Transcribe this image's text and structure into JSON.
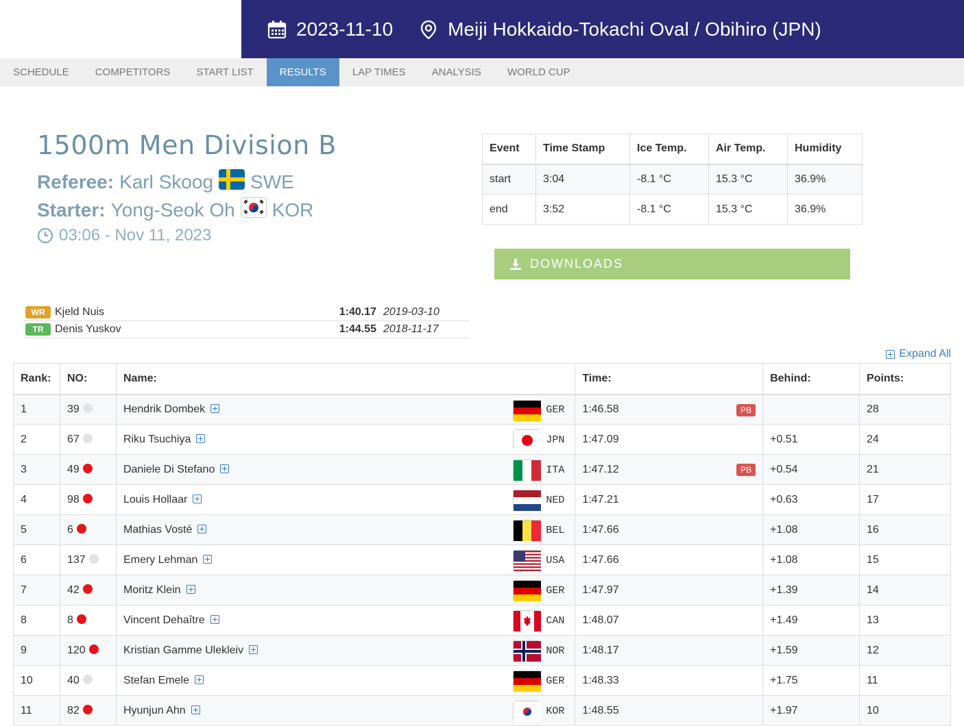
{
  "header": {
    "date": "2023-11-10",
    "venue": "Meiji Hokkaido-Tokachi Oval / Obihiro (JPN)",
    "date_icon": "calendar-icon",
    "venue_icon": "map-pin-icon",
    "band_color": "#2b2a78"
  },
  "nav": {
    "items": [
      "SCHEDULE",
      "COMPETITORS",
      "START LIST",
      "RESULTS",
      "LAP TIMES",
      "ANALYSIS",
      "WORLD CUP"
    ],
    "active": "RESULTS",
    "active_color": "#5a93c8"
  },
  "race": {
    "title": "1500m Men Division B",
    "referee_label": "Referee:",
    "referee_name": "Karl Skoog",
    "referee_country": "SWE",
    "starter_label": "Starter:",
    "starter_name": "Yong-Seok Oh",
    "starter_country": "KOR",
    "datetime": "03:06 - Nov 11, 2023"
  },
  "conditions": {
    "headers": [
      "Event",
      "Time Stamp",
      "Ice Temp.",
      "Air Temp.",
      "Humidity"
    ],
    "rows": [
      [
        "start",
        "3:04",
        "-8.1 °C",
        "15.3 °C",
        "36.9%"
      ],
      [
        "end",
        "3:52",
        "-8.1 °C",
        "15.3 °C",
        "36.9%"
      ]
    ]
  },
  "downloads_label": "DOWNLOADS",
  "records": [
    {
      "type": "WR",
      "name": "Kjeld Nuis",
      "time": "1:40.17",
      "date": "2019-03-10",
      "color": "#e0a32e"
    },
    {
      "type": "TR",
      "name": "Denis Yuskov",
      "time": "1:44.55",
      "date": "2018-11-17",
      "color": "#5cb85c"
    }
  ],
  "expand_all_label": "Expand All",
  "results": {
    "headers": {
      "rank": "Rank:",
      "no": "NO:",
      "name": "Name:",
      "time": "Time:",
      "behind": "Behind:",
      "points": "Points:"
    },
    "rows": [
      {
        "rank": "1",
        "no": "39",
        "dot": "#e3e3e3",
        "name": "Hendrik Dombek",
        "nat": "GER",
        "time": "1:46.58",
        "pb": "PB",
        "behind": "",
        "points": "28"
      },
      {
        "rank": "2",
        "no": "67",
        "dot": "#e3e3e3",
        "name": "Riku Tsuchiya",
        "nat": "JPN",
        "time": "1:47.09",
        "pb": "",
        "behind": "+0.51",
        "points": "24"
      },
      {
        "rank": "3",
        "no": "49",
        "dot": "#e8141c",
        "name": "Daniele Di Stefano",
        "nat": "ITA",
        "time": "1:47.12",
        "pb": "PB",
        "behind": "+0.54",
        "points": "21"
      },
      {
        "rank": "4",
        "no": "98",
        "dot": "#e8141c",
        "name": "Louis Hollaar",
        "nat": "NED",
        "time": "1:47.21",
        "pb": "",
        "behind": "+0.63",
        "points": "17"
      },
      {
        "rank": "5",
        "no": "6",
        "dot": "#e8141c",
        "name": "Mathias Vosté",
        "nat": "BEL",
        "time": "1:47.66",
        "pb": "",
        "behind": "+1.08",
        "points": "16"
      },
      {
        "rank": "6",
        "no": "137",
        "dot": "#e3e3e3",
        "name": "Emery Lehman",
        "nat": "USA",
        "time": "1:47.66",
        "pb": "",
        "behind": "+1.08",
        "points": "15"
      },
      {
        "rank": "7",
        "no": "42",
        "dot": "#e8141c",
        "name": "Moritz Klein",
        "nat": "GER",
        "time": "1:47.97",
        "pb": "",
        "behind": "+1.39",
        "points": "14"
      },
      {
        "rank": "8",
        "no": "8",
        "dot": "#e8141c",
        "name": "Vincent Dehaître",
        "nat": "CAN",
        "time": "1:48.07",
        "pb": "",
        "behind": "+1.49",
        "points": "13"
      },
      {
        "rank": "9",
        "no": "120",
        "dot": "#e8141c",
        "name": "Kristian Gamme Ulekleiv",
        "nat": "NOR",
        "time": "1:48.17",
        "pb": "",
        "behind": "+1.59",
        "points": "12"
      },
      {
        "rank": "10",
        "no": "40",
        "dot": "#e3e3e3",
        "name": "Stefan Emele",
        "nat": "GER",
        "time": "1:48.33",
        "pb": "",
        "behind": "+1.75",
        "points": "11"
      },
      {
        "rank": "11",
        "no": "82",
        "dot": "#e8141c",
        "name": "Hyunjun Ahn",
        "nat": "KOR",
        "time": "1:48.55",
        "pb": "",
        "behind": "+1.97",
        "points": "10"
      }
    ]
  }
}
